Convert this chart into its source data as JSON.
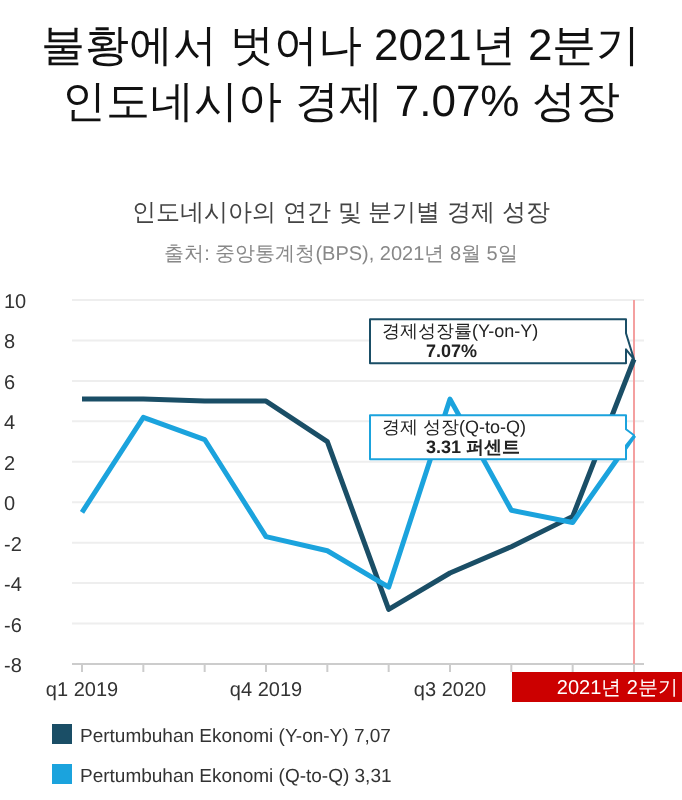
{
  "chart_data": {
    "type": "line",
    "title": "불황에서 벗어나 2021년 2분기\n인도네시아 경제 7.07% 성장",
    "subtitle": "인도네시아의 연간 및 분기별 경제 성장",
    "categories": [
      "q1 2019",
      null,
      null,
      "q4 2019",
      null,
      null,
      "q3 2020",
      null,
      null,
      "2021년 2분기"
    ],
    "series": [
      {
        "name": "Pertumbuhan Ekonomi (Y-on-Y) 7,07",
        "color": "#1a4e66",
        "values": [
          5.1,
          5.1,
          5.0,
          5.0,
          3.0,
          -5.3,
          -3.5,
          -2.2,
          -0.7,
          7.07
        ]
      },
      {
        "name": "Pertumbuhan Ekonomi (Q-to-Q) 3,31",
        "color": "#1ba3dd",
        "values": [
          -0.5,
          4.2,
          3.1,
          -1.7,
          -2.4,
          -4.2,
          5.1,
          -0.4,
          -1.0,
          3.31
        ]
      }
    ],
    "ylim": [
      -8,
      10
    ],
    "yticks": [
      -8,
      -6,
      -4,
      -2,
      0,
      2,
      4,
      6,
      8,
      10
    ],
    "grid": "y",
    "legend": "bottom",
    "ref_lines": [
      {
        "axis": "x",
        "value": "2021년 2분기",
        "color": "#f4a0a0"
      }
    ],
    "annotations": [
      "출처: 중앙통계청(BPS), 2021년 8월 5일",
      "경제성장률(Y-on-Y)\n7.07%",
      "경제 성장(Q-to-Q)\n3.31 퍼센트"
    ]
  }
}
